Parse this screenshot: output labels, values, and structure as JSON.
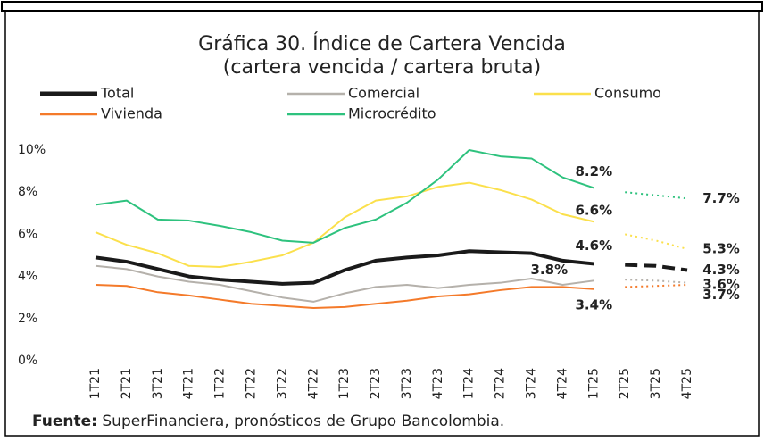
{
  "chart_data": {
    "type": "line",
    "title": [
      "Gráfica 30. Índice de Cartera Vencida",
      "(cartera vencida / cartera bruta)"
    ],
    "categories": [
      "1T21",
      "2T21",
      "3T21",
      "4T21",
      "1T22",
      "2T22",
      "3T22",
      "4T22",
      "1T23",
      "2T23",
      "3T23",
      "4T23",
      "1T24",
      "2T24",
      "3T24",
      "4T24",
      "1T25",
      "2T25",
      "3T25",
      "4T25"
    ],
    "forecast_from": "1T25",
    "series": [
      {
        "name": "Total",
        "color": "#1a1a1a",
        "width": 4,
        "forecast_dash": "dashed",
        "values": [
          4.9,
          4.7,
          4.35,
          4.0,
          3.85,
          3.75,
          3.65,
          3.7,
          4.3,
          4.75,
          4.9,
          5.0,
          5.2,
          5.15,
          5.1,
          4.75,
          4.6,
          4.55,
          4.5,
          4.3
        ],
        "value_labels": [
          null,
          null,
          null,
          null,
          null,
          null,
          null,
          null,
          null,
          null,
          null,
          null,
          null,
          null,
          null,
          null,
          "4.6%",
          null,
          null,
          "4.3%"
        ]
      },
      {
        "name": "Comercial",
        "color": "#b5b1ab",
        "width": 2,
        "forecast_dash": "dotted",
        "values": [
          4.5,
          4.35,
          4.0,
          3.75,
          3.6,
          3.3,
          3.0,
          2.8,
          3.2,
          3.5,
          3.6,
          3.45,
          3.6,
          3.7,
          3.9,
          3.6,
          3.8,
          3.85,
          3.8,
          3.7
        ],
        "value_labels": [
          null,
          null,
          null,
          null,
          null,
          null,
          null,
          null,
          null,
          null,
          null,
          null,
          null,
          null,
          null,
          null,
          "3.8%",
          null,
          null,
          "3.7%"
        ]
      },
      {
        "name": "Consumo",
        "color": "#fbe04c",
        "width": 2,
        "forecast_dash": "dotted",
        "values": [
          6.1,
          5.5,
          5.1,
          4.5,
          4.45,
          4.7,
          5.0,
          5.6,
          6.8,
          7.6,
          7.8,
          8.25,
          8.45,
          8.1,
          7.65,
          6.95,
          6.6,
          6.0,
          5.7,
          5.3
        ],
        "value_labels": [
          null,
          null,
          null,
          null,
          null,
          null,
          null,
          null,
          null,
          null,
          null,
          null,
          null,
          null,
          null,
          null,
          "6.6%",
          null,
          null,
          "5.3%"
        ]
      },
      {
        "name": "Vivienda",
        "color": "#f47a2a",
        "width": 2,
        "forecast_dash": "dotted",
        "values": [
          3.6,
          3.55,
          3.25,
          3.1,
          2.9,
          2.7,
          2.6,
          2.5,
          2.55,
          2.7,
          2.85,
          3.05,
          3.15,
          3.35,
          3.5,
          3.5,
          3.4,
          3.5,
          3.55,
          3.6
        ],
        "value_labels": [
          null,
          null,
          null,
          null,
          null,
          null,
          null,
          null,
          null,
          null,
          null,
          null,
          null,
          null,
          null,
          null,
          "3.4%",
          null,
          null,
          "3.6%"
        ]
      },
      {
        "name": "Microcrédito",
        "color": "#2ec27e",
        "width": 2,
        "forecast_dash": "dotted",
        "values": [
          7.4,
          7.6,
          6.7,
          6.65,
          6.4,
          6.1,
          5.7,
          5.6,
          6.3,
          6.7,
          7.5,
          8.6,
          10.0,
          9.7,
          9.6,
          8.7,
          8.2,
          8.0,
          7.85,
          7.7
        ],
        "value_labels": [
          null,
          null,
          null,
          null,
          null,
          null,
          null,
          null,
          null,
          null,
          null,
          null,
          null,
          null,
          null,
          null,
          "8.2%",
          null,
          null,
          "7.7%"
        ]
      }
    ],
    "ylim": [
      0,
      10
    ],
    "yticks": [
      {
        "value": 0,
        "label": "0%"
      },
      {
        "value": 2,
        "label": "2%"
      },
      {
        "value": 4,
        "label": "4%"
      },
      {
        "value": 6,
        "label": "6%"
      },
      {
        "value": 8,
        "label": "8%"
      },
      {
        "value": 10,
        "label": "10%"
      }
    ],
    "grid": false,
    "source": {
      "label": "Fuente:",
      "text": "SuperFinanciera, pronósticos de Grupo Bancolombia."
    }
  }
}
